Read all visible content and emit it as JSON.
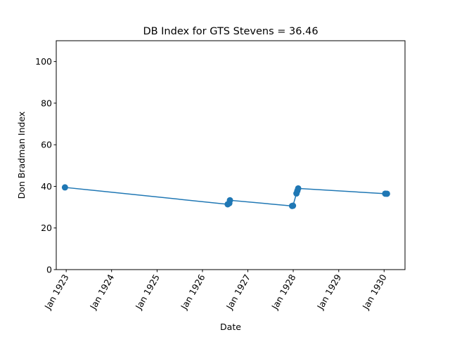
{
  "chart_data": {
    "type": "line",
    "title": "DB Index for GTS Stevens = 36.46",
    "xlabel": "Date",
    "ylabel": "Don Bradman Index",
    "x_ticks": [
      "Jan 1923",
      "Jan 1924",
      "Jan 1925",
      "Jan 1926",
      "Jan 1927",
      "Jan 1928",
      "Jan 1929",
      "Jan 1930"
    ],
    "y_ticks": [
      "0",
      "20",
      "40",
      "60",
      "80",
      "100"
    ],
    "xlim": [
      "1922-10-13",
      "1930-06-18"
    ],
    "ylim": [
      0,
      110
    ],
    "series": [
      {
        "color": "#1f77b4",
        "marker": "circle",
        "x": [
          "1922-12-22",
          "1926-07-23",
          "1926-08-05",
          "1926-08-10",
          "1927-12-23",
          "1927-12-30",
          "1928-01-27",
          "1928-02-03",
          "1928-02-10",
          "1930-01-10",
          "1930-01-24"
        ],
        "y": [
          39.5,
          31.4,
          31.9,
          33.3,
          30.6,
          30.7,
          36.6,
          37.8,
          39.0,
          36.5,
          36.46
        ]
      }
    ]
  }
}
